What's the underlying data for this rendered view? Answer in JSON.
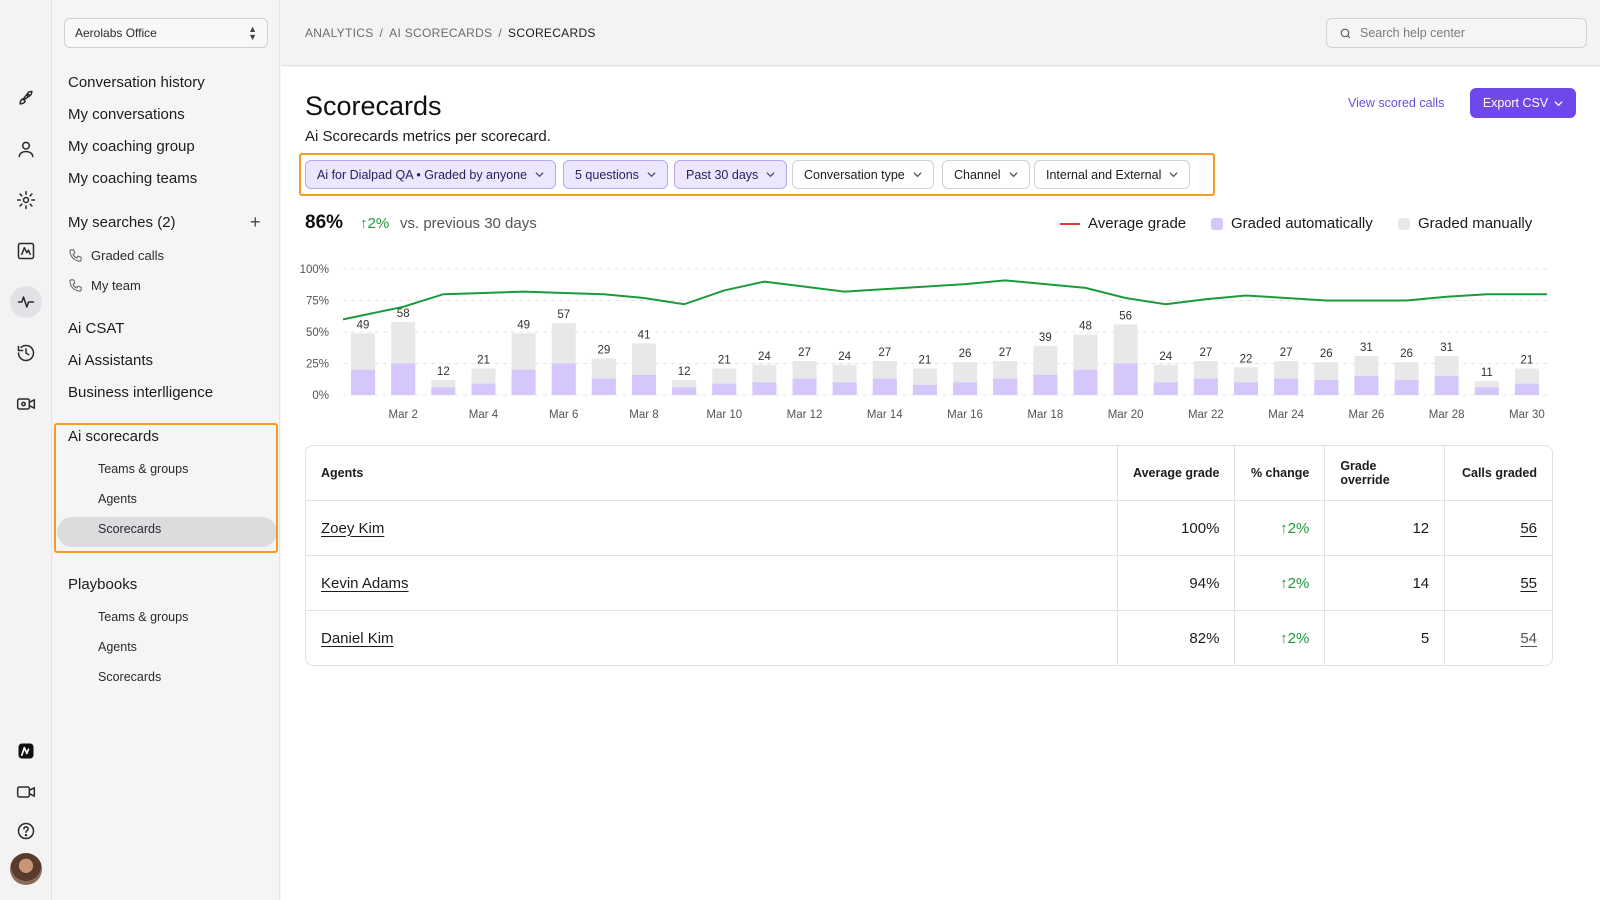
{
  "org": {
    "name": "Aerolabs Office"
  },
  "breadcrumb": [
    "ANALYTICS",
    "AI SCORECARDS",
    "SCORECARDS"
  ],
  "search": {
    "placeholder": "Search help center"
  },
  "rail": {
    "icons": [
      "rocket-icon",
      "person-icon",
      "gear-icon",
      "analytics-icon",
      "pulse-icon",
      "history-icon",
      "video-settings-icon",
      "ai-logo-icon",
      "video-icon",
      "help-icon"
    ]
  },
  "sidebar": {
    "top_items": [
      "Conversation history",
      "My conversations",
      "My coaching group",
      "My coaching teams"
    ],
    "my_searches": {
      "label": "My searches (2)",
      "items": [
        "Graded calls",
        "My team"
      ]
    },
    "middle_items": [
      "Ai CSAT",
      "Ai Assistants",
      "Business interlligence"
    ],
    "ai_scorecards": {
      "label": "Ai scorecards",
      "items": [
        "Teams & groups",
        "Agents",
        "Scorecards"
      ],
      "active": "Scorecards"
    },
    "playbooks": {
      "label": "Playbooks",
      "items": [
        "Teams & groups",
        "Agents",
        "Scorecards"
      ]
    }
  },
  "page": {
    "title": "Scorecards",
    "subtitle": "Ai Scorecards metrics per scorecard.",
    "view_link": "View scored calls",
    "export_label": "Export CSV"
  },
  "filters": [
    {
      "label": "Ai for Dialpad QA • Graded by anyone",
      "selected": true
    },
    {
      "label": "5 questions",
      "selected": true
    },
    {
      "label": "Past 30 days",
      "selected": true
    },
    {
      "label": "Conversation type",
      "selected": false
    },
    {
      "label": "Channel",
      "selected": false
    },
    {
      "label": "Internal and External",
      "selected": false
    }
  ],
  "kpi": {
    "value": "86%",
    "change": "2%",
    "comparison": "vs. previous 30 days"
  },
  "legend": {
    "line": "Average grade",
    "auto": "Graded automatically",
    "manual": "Graded manually"
  },
  "colors": {
    "accent": "#7047eb",
    "auto": "#d5c6fb",
    "manual": "#e8e8ea",
    "line": "#1a9b3a",
    "legend_line": "#e23a3a",
    "positive": "#1a9b3a"
  },
  "chart_data": {
    "type": "bar",
    "categories": [
      "Mar 1",
      "Mar 2",
      "Mar 3",
      "Mar 4",
      "Mar 5",
      "Mar 6",
      "Mar 7",
      "Mar 8",
      "Mar 9",
      "Mar 10",
      "Mar 11",
      "Mar 12",
      "Mar 13",
      "Mar 14",
      "Mar 15",
      "Mar 16",
      "Mar 17",
      "Mar 18",
      "Mar 19",
      "Mar 20",
      "Mar 21",
      "Mar 22",
      "Mar 23",
      "Mar 24",
      "Mar 25",
      "Mar 26",
      "Mar 27",
      "Mar 28",
      "Mar 29",
      "Mar 30"
    ],
    "tick_labels": [
      "Mar 2",
      "Mar 4",
      "Mar 6",
      "Mar 8",
      "Mar 10",
      "Mar 12",
      "Mar 14",
      "Mar 16",
      "Mar 18",
      "Mar 20",
      "Mar 22",
      "Mar 24",
      "Mar 26",
      "Mar 28",
      "Mar 30"
    ],
    "values": [
      49,
      58,
      12,
      21,
      49,
      57,
      29,
      41,
      12,
      21,
      24,
      27,
      24,
      27,
      21,
      26,
      27,
      39,
      48,
      56,
      24,
      27,
      22,
      27,
      26,
      31,
      26,
      31,
      11,
      21
    ],
    "auto_values": [
      20,
      25,
      6,
      9,
      20,
      25,
      13,
      16,
      6,
      9,
      10,
      13,
      10,
      13,
      8,
      10,
      13,
      16,
      20,
      25,
      10,
      13,
      10,
      13,
      12,
      15,
      12,
      15,
      6,
      9
    ],
    "average_grade": [
      60,
      70,
      80,
      81,
      82,
      81,
      80,
      77,
      72,
      83,
      90,
      86,
      82,
      84,
      86,
      88,
      91,
      88,
      85,
      77,
      72,
      76,
      79,
      77,
      75,
      75,
      75,
      78,
      80,
      80
    ],
    "yticks": [
      "100%",
      "75%",
      "50%",
      "25%",
      "0%"
    ],
    "ylim": [
      0,
      100
    ],
    "grid": true,
    "legend_placement": "top-right"
  },
  "table": {
    "headers": [
      "Agents",
      "Average grade",
      "% change",
      "Grade override",
      "Calls graded"
    ],
    "rows": [
      {
        "agent": "Zoey Kim",
        "avg": "100%",
        "change": "2%",
        "override": "12",
        "calls": "56"
      },
      {
        "agent": "Kevin Adams",
        "avg": "94%",
        "change": "2%",
        "override": "14",
        "calls": "55"
      },
      {
        "agent": "Daniel Kim",
        "avg": "82%",
        "change": "2%",
        "override": "5",
        "calls": "54"
      }
    ]
  }
}
